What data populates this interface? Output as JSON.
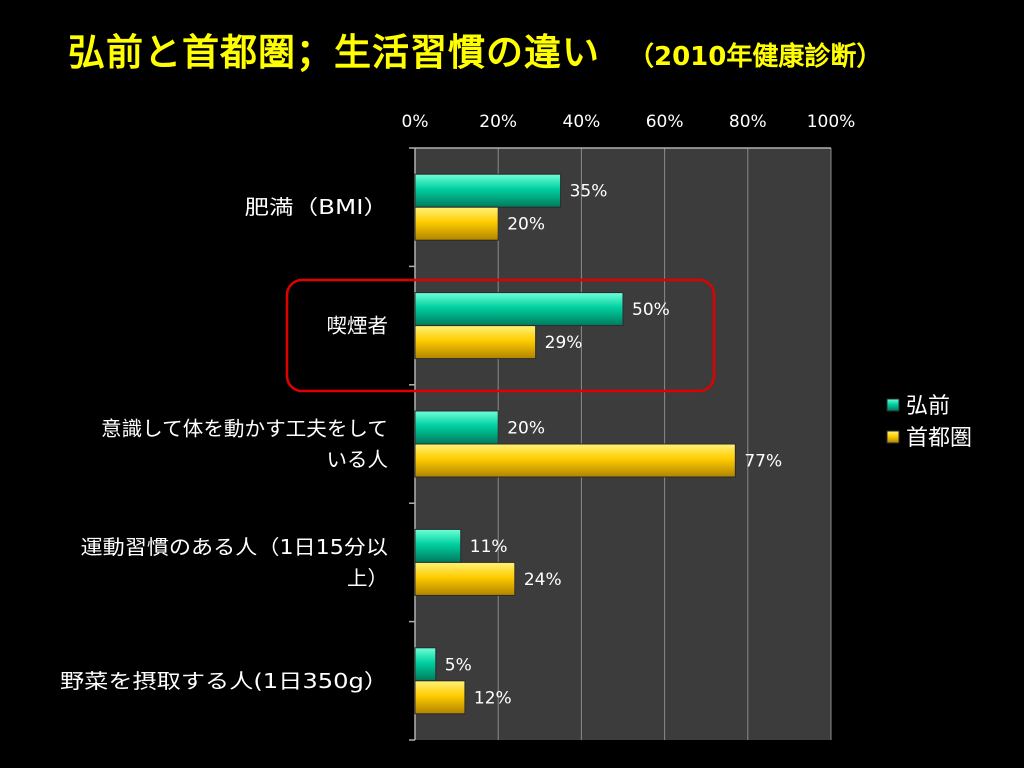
{
  "title": {
    "main": "弘前と首都圏；生活習慣の違い",
    "sub": "（2010年健康診断）"
  },
  "chart_data": {
    "type": "bar",
    "orientation": "horizontal",
    "categories": [
      [
        "肥満（BMI）"
      ],
      [
        "喫煙者"
      ],
      [
        "意識して体を動かす工夫をして",
        "いる人"
      ],
      [
        "運動習慣のある人（1日15分以",
        "上）"
      ],
      [
        "野菜を摂取する人(1日350g）"
      ]
    ],
    "series": [
      {
        "name": "弘前",
        "values": [
          35,
          50,
          20,
          11,
          5
        ],
        "labels": [
          "35%",
          "50%",
          "20%",
          "11%",
          "5%"
        ],
        "color": "#00c896"
      },
      {
        "name": "首都圏",
        "values": [
          20,
          29,
          77,
          24,
          12
        ],
        "labels": [
          "20%",
          "29%",
          "77%",
          "24%",
          "12%"
        ],
        "color": "#ffc800"
      }
    ],
    "xlim": [
      0,
      100
    ],
    "ticks": [
      "0%",
      "20%",
      "40%",
      "60%",
      "80%",
      "100%"
    ],
    "axis_position": "top",
    "grid": true,
    "legend_position": "right",
    "highlight_category_index": 1,
    "highlight_color": "#e00000"
  }
}
